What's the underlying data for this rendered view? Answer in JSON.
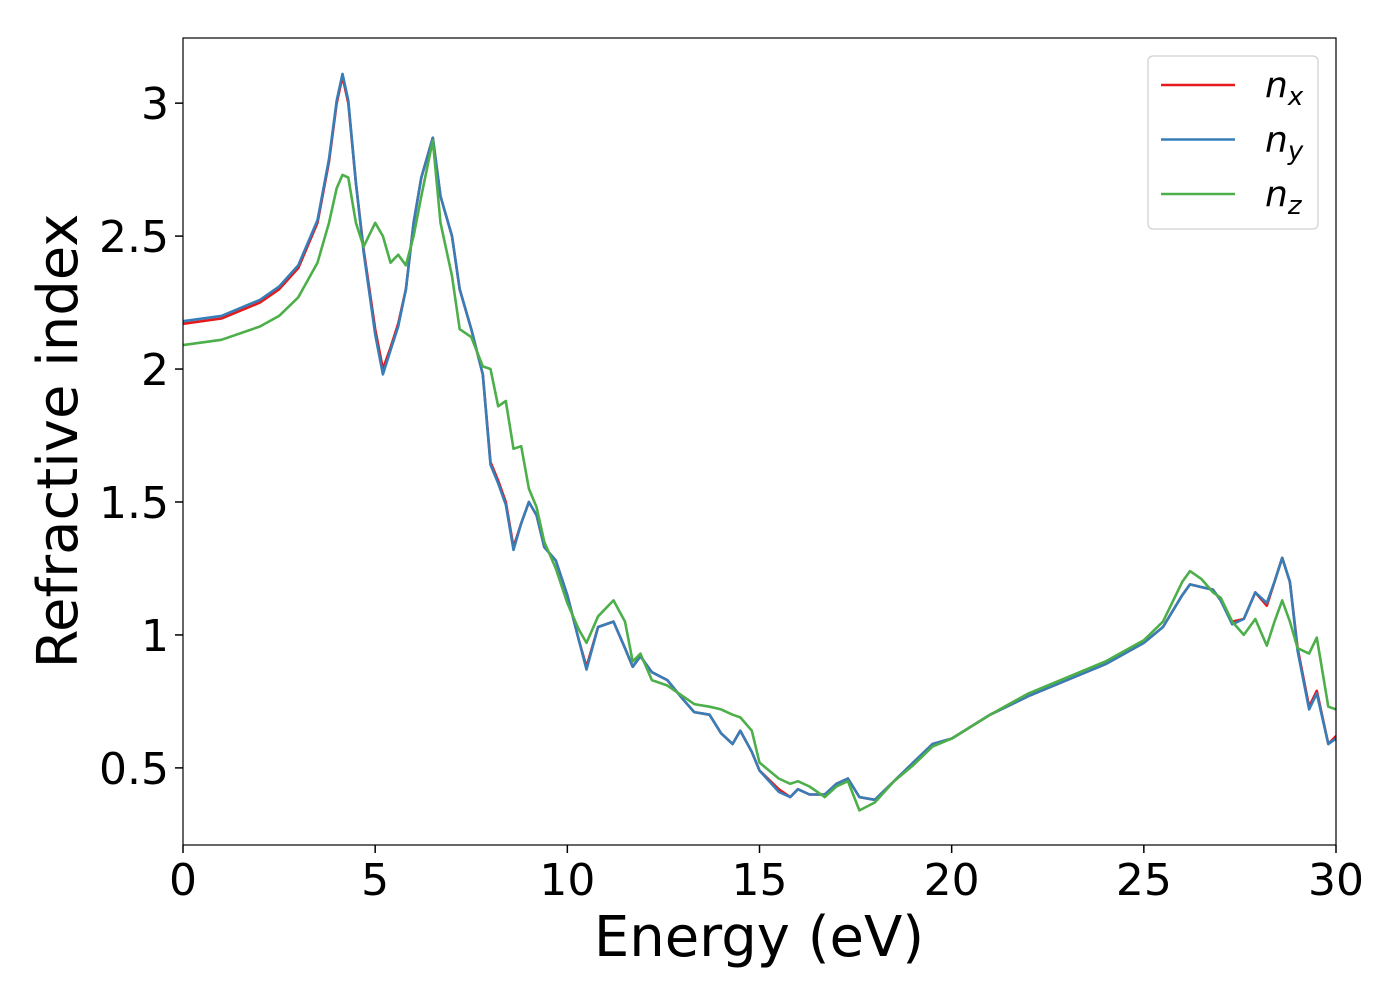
{
  "chart_data": {
    "type": "line",
    "xlabel": "Energy (eV)",
    "ylabel": "Refractive index",
    "x": [
      0,
      1,
      2,
      2.5,
      3,
      3.5,
      3.8,
      4.0,
      4.15,
      4.3,
      4.5,
      4.7,
      5.0,
      5.2,
      5.4,
      5.6,
      5.8,
      6.0,
      6.2,
      6.5,
      6.7,
      7.0,
      7.2,
      7.5,
      7.8,
      8.0,
      8.2,
      8.4,
      8.6,
      8.8,
      9.0,
      9.2,
      9.4,
      9.7,
      10.0,
      10.3,
      10.5,
      10.8,
      11.2,
      11.5,
      11.7,
      11.9,
      12.2,
      12.6,
      13.0,
      13.3,
      13.7,
      14.0,
      14.3,
      14.5,
      14.8,
      15.0,
      15.5,
      15.8,
      16.0,
      16.3,
      16.7,
      17.0,
      17.3,
      17.6,
      18.0,
      18.5,
      19.0,
      19.5,
      20.0,
      21,
      22,
      23,
      24,
      25,
      25.5,
      26,
      26.2,
      26.5,
      26.8,
      27,
      27.3,
      27.6,
      27.9,
      28.2,
      28.4,
      28.6,
      28.8,
      29,
      29.3,
      29.5,
      29.8,
      30
    ],
    "series": [
      {
        "name": "nx",
        "color": "#e41a1c",
        "values": [
          2.17,
          2.19,
          2.25,
          2.3,
          2.38,
          2.55,
          2.78,
          3.0,
          3.1,
          3.0,
          2.7,
          2.45,
          2.15,
          2.0,
          2.08,
          2.17,
          2.3,
          2.55,
          2.72,
          2.87,
          2.65,
          2.5,
          2.3,
          2.15,
          1.98,
          1.65,
          1.58,
          1.5,
          1.33,
          1.42,
          1.5,
          1.45,
          1.33,
          1.28,
          1.15,
          0.98,
          0.88,
          1.03,
          1.05,
          0.95,
          0.88,
          0.92,
          0.86,
          0.83,
          0.76,
          0.71,
          0.7,
          0.63,
          0.59,
          0.64,
          0.56,
          0.49,
          0.42,
          0.39,
          0.42,
          0.4,
          0.4,
          0.44,
          0.46,
          0.39,
          0.38,
          0.45,
          0.52,
          0.59,
          0.61,
          0.7,
          0.77,
          0.83,
          0.89,
          0.97,
          1.03,
          1.15,
          1.19,
          1.18,
          1.17,
          1.13,
          1.05,
          1.06,
          1.16,
          1.11,
          1.2,
          1.29,
          1.2,
          0.95,
          0.73,
          0.79,
          0.59,
          0.62
        ]
      },
      {
        "name": "ny",
        "color": "#377eb8",
        "values": [
          2.18,
          2.2,
          2.26,
          2.31,
          2.39,
          2.56,
          2.79,
          3.01,
          3.11,
          3.01,
          2.7,
          2.44,
          2.13,
          1.98,
          2.07,
          2.16,
          2.3,
          2.55,
          2.72,
          2.87,
          2.65,
          2.5,
          2.3,
          2.15,
          1.98,
          1.64,
          1.57,
          1.49,
          1.32,
          1.42,
          1.5,
          1.45,
          1.33,
          1.28,
          1.15,
          0.98,
          0.87,
          1.03,
          1.05,
          0.95,
          0.88,
          0.92,
          0.86,
          0.83,
          0.76,
          0.71,
          0.7,
          0.63,
          0.59,
          0.64,
          0.56,
          0.49,
          0.41,
          0.39,
          0.42,
          0.4,
          0.4,
          0.44,
          0.46,
          0.39,
          0.38,
          0.45,
          0.52,
          0.59,
          0.61,
          0.7,
          0.77,
          0.83,
          0.89,
          0.97,
          1.03,
          1.15,
          1.19,
          1.18,
          1.17,
          1.13,
          1.04,
          1.06,
          1.16,
          1.12,
          1.2,
          1.29,
          1.2,
          0.94,
          0.72,
          0.78,
          0.59,
          0.61
        ]
      },
      {
        "name": "nz",
        "color": "#4daf4a",
        "values": [
          2.09,
          2.11,
          2.16,
          2.2,
          2.27,
          2.4,
          2.55,
          2.68,
          2.73,
          2.72,
          2.55,
          2.46,
          2.55,
          2.5,
          2.4,
          2.43,
          2.39,
          2.5,
          2.65,
          2.86,
          2.55,
          2.35,
          2.15,
          2.12,
          2.01,
          2.0,
          1.86,
          1.88,
          1.7,
          1.71,
          1.55,
          1.48,
          1.35,
          1.25,
          1.12,
          1.02,
          0.97,
          1.07,
          1.13,
          1.05,
          0.9,
          0.93,
          0.83,
          0.81,
          0.77,
          0.74,
          0.73,
          0.72,
          0.7,
          0.69,
          0.64,
          0.52,
          0.46,
          0.44,
          0.45,
          0.43,
          0.39,
          0.43,
          0.45,
          0.34,
          0.37,
          0.45,
          0.51,
          0.58,
          0.61,
          0.7,
          0.78,
          0.84,
          0.9,
          0.98,
          1.05,
          1.2,
          1.24,
          1.21,
          1.16,
          1.14,
          1.05,
          1.0,
          1.06,
          0.96,
          1.05,
          1.13,
          1.05,
          0.95,
          0.93,
          0.99,
          0.73,
          0.72
        ]
      }
    ],
    "xlim": [
      0,
      30
    ],
    "xticks": [
      0,
      5,
      10,
      15,
      20,
      25,
      30
    ],
    "ylim": [
      0.21,
      3.245
    ],
    "yticks": [
      0.5,
      1.0,
      1.5,
      2.0,
      2.5,
      3.0
    ],
    "legend": "upper right"
  }
}
